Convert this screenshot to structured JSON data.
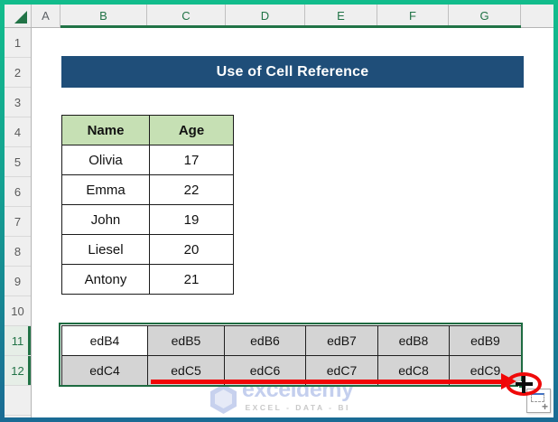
{
  "grid": {
    "column_headers": [
      "A",
      "B",
      "C",
      "D",
      "E",
      "F",
      "G"
    ],
    "row_headers": [
      "1",
      "2",
      "3",
      "4",
      "5",
      "6",
      "7",
      "8",
      "9",
      "10",
      "11",
      "12",
      ""
    ],
    "selected_columns": [
      "B",
      "C",
      "D",
      "E",
      "F",
      "G"
    ],
    "selected_rows": [
      "11",
      "12"
    ]
  },
  "banner": {
    "title": "Use of Cell Reference"
  },
  "name_table": {
    "headers": [
      "Name",
      "Age"
    ],
    "rows": [
      [
        "Olivia",
        "17"
      ],
      [
        "Emma",
        "22"
      ],
      [
        "John",
        "19"
      ],
      [
        "Liesel",
        "20"
      ],
      [
        "Antony",
        "21"
      ]
    ]
  },
  "ref_table": {
    "active_cell": "edB4",
    "rows": [
      [
        "edB4",
        "edB5",
        "edB6",
        "edB7",
        "edB8",
        "edB9"
      ],
      [
        "edC4",
        "edC5",
        "edC6",
        "edC7",
        "edC8",
        "edC9"
      ]
    ]
  },
  "autofill": {
    "label": "+"
  },
  "watermark": {
    "brand": "exceldemy",
    "tagline": "EXCEL - DATA - BI"
  },
  "colors": {
    "frame_gradient_top": "#12bc8c",
    "frame_gradient_bottom": "#1a6b94",
    "banner_bg": "#1f4e79",
    "table_header_bg": "#c6e0b4",
    "selection_fill": "#d4d4d4",
    "selection_border": "#1e6b41",
    "header_accent_green": "#217346",
    "annotation_red": "#ef0a0a",
    "watermark_blue": "#c4cfee"
  }
}
